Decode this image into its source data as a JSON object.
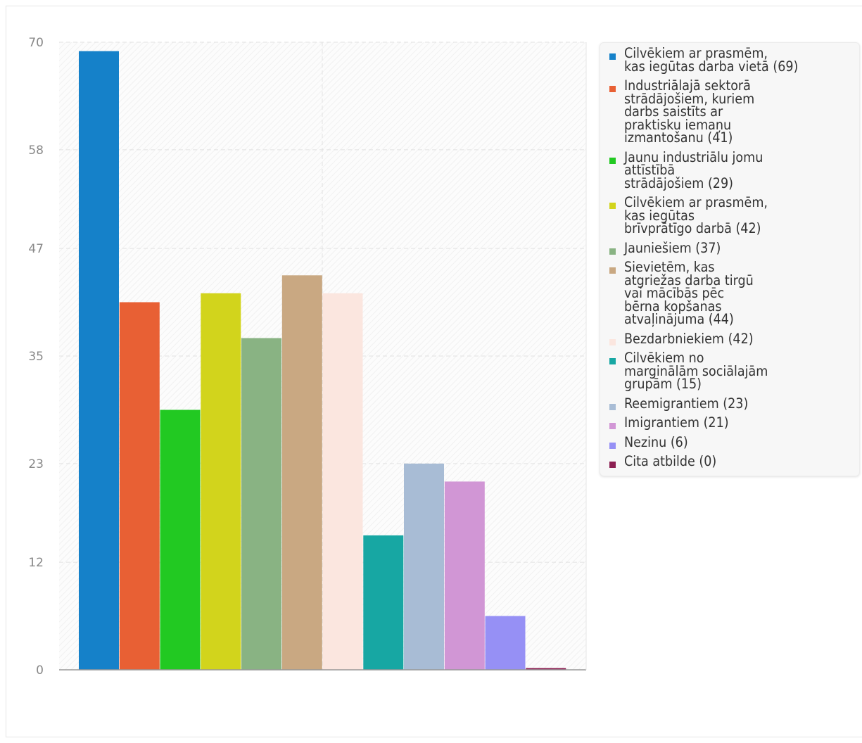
{
  "chart_data": {
    "type": "bar",
    "title": "",
    "xlabel": "",
    "ylabel": "",
    "ylim": [
      0,
      70
    ],
    "y_ticks": [
      "0",
      "12",
      "23",
      "35",
      "47",
      "58",
      "70"
    ],
    "grid": true,
    "legend_position": "right",
    "series": [
      {
        "name": "Cilvēkiem ar prasmēm, kas iegūtas darba vietā",
        "value": 69,
        "label": "Cilvēkiem ar prasmēm, kas iegūtas darba vietā (69)",
        "color": "#1581c9",
        "lines": [
          "Cilvēkiem ar prasmēm,",
          "kas iegūtas darba vietā (69)"
        ]
      },
      {
        "name": "Industriālajā sektorā strādājošiem, kuriem darbs saistīts ar praktisku iemaņu izmantošanu",
        "value": 41,
        "label": "Industriālajā sektorā strādājošiem, kuriem darbs saistīts ar praktisku iemaņu izmantošanu (41)",
        "color": "#e86034",
        "lines": [
          "Industriālajā sektorā",
          "strādājošiem, kuriem",
          "darbs saistīts ar",
          "praktisku iemaņu",
          "izmantošanu (41)"
        ]
      },
      {
        "name": "Jaunu industriālu jomu attīstībā strādājošiem",
        "value": 29,
        "label": "Jaunu industriālu jomu attīstībā strādājošiem (29)",
        "color": "#22c922",
        "lines": [
          "Jaunu industriālu jomu",
          "attīstībā",
          "strādājošiem (29)"
        ]
      },
      {
        "name": "Cilvēkiem ar prasmēm, kas iegūtas brīvprātīgo darbā",
        "value": 42,
        "label": "Cilvēkiem ar prasmēm, kas iegūtas brīvprātīgo darbā (42)",
        "color": "#d2d41c",
        "lines": [
          "Cilvēkiem ar prasmēm,",
          "kas iegūtas",
          "brīvprātīgo darbā (42)"
        ]
      },
      {
        "name": "Jauniešiem",
        "value": 37,
        "label": "Jauniešiem (37)",
        "color": "#89b383",
        "lines": [
          "Jauniešiem (37)"
        ]
      },
      {
        "name": "Sievietēm, kas atgriežas darba tirgū vai mācībās pēc bērna kopšanas atvaļinājuma",
        "value": 44,
        "label": "Sievietēm, kas atgriežas darba tirgū vai mācībās pēc bērna kopšanas atvaļinājuma (44)",
        "color": "#c9a882",
        "lines": [
          "Sievietēm, kas",
          "atgriežas darba tirgū",
          "vai mācībās pēc",
          "bērna kopšanas",
          "atvaļinājuma (44)"
        ]
      },
      {
        "name": "Bezdarbniekiem",
        "value": 42,
        "label": "Bezdarbniekiem (42)",
        "color": "#fbe6df",
        "lines": [
          "Bezdarbniekiem (42)"
        ]
      },
      {
        "name": "Cilvēkiem no marginālām sociālajām grupām",
        "value": 15,
        "label": "Cilvēkiem no marginālām sociālajām grupām (15)",
        "color": "#17a7a3",
        "lines": [
          "Cilvēkiem no",
          "marginālām sociālajām",
          "grupām (15)"
        ]
      },
      {
        "name": "Reemigrantiem",
        "value": 23,
        "label": "Reemigrantiem (23)",
        "color": "#a8bcd5",
        "lines": [
          "Reemigrantiem (23)"
        ]
      },
      {
        "name": "Imigrantiem",
        "value": 21,
        "label": "Imigrantiem (21)",
        "color": "#d196d5",
        "lines": [
          "Imigrantiem (21)"
        ]
      },
      {
        "name": "Nezinu",
        "value": 6,
        "label": "Nezinu (6)",
        "color": "#9690f5",
        "lines": [
          "Nezinu (6)"
        ]
      },
      {
        "name": "Cita atbilde",
        "value": 0,
        "label": "Cita atbilde (0)",
        "color": "#8c1f52",
        "lines": [
          "Cita atbilde (0)"
        ]
      }
    ]
  }
}
